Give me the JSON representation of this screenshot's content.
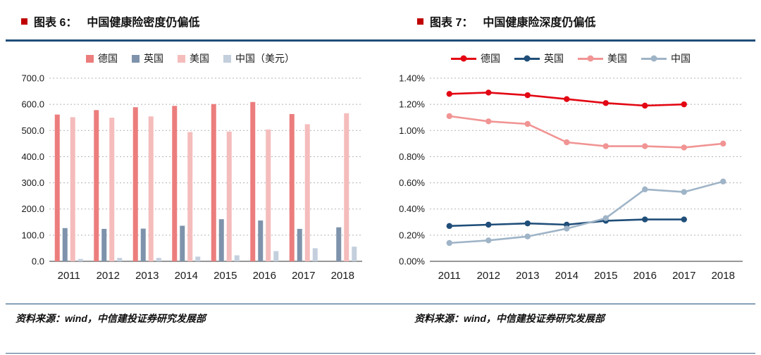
{
  "header": {
    "left_title": {
      "label": "图表 6：",
      "text": "中国健康险密度仍偏低"
    },
    "right_title": {
      "label": "图表 7：",
      "text": "中国健康险深度仍偏低"
    }
  },
  "footer": {
    "left_source": "资料来源：wind，中信建投证券研究发展部",
    "right_source": "资料来源：wind，中信建投证券研究发展部"
  },
  "colors": {
    "title_bullet": "#c00000",
    "divider": "#1f4e79",
    "grid": "#b3b3b3",
    "axis": "#595959"
  },
  "chart_data": [
    {
      "type": "bar",
      "title": "中国健康险密度仍偏低",
      "categories": [
        "2011",
        "2012",
        "2013",
        "2014",
        "2015",
        "2016",
        "2017",
        "2018"
      ],
      "series": [
        {
          "name": "德国",
          "color": "#ec7d7d",
          "values": [
            561,
            578,
            589,
            594,
            601,
            609,
            563,
            null
          ]
        },
        {
          "name": "英国",
          "color": "#7e93ab",
          "values": [
            127,
            124,
            125,
            136,
            161,
            156,
            124,
            130
          ]
        },
        {
          "name": "美国",
          "color": "#f5bcbc",
          "values": [
            551,
            549,
            554,
            494,
            496,
            504,
            524,
            566
          ]
        },
        {
          "name": "中国（美元）",
          "color": "#c3cfdd",
          "values": [
            9,
            13,
            13,
            18,
            23,
            39,
            50,
            56
          ]
        }
      ],
      "ylim": [
        0,
        700
      ],
      "ytick_step": 100,
      "ytick_format": "fixed1",
      "grid": true,
      "legend_position": "top",
      "xlabel": "",
      "ylabel": ""
    },
    {
      "type": "line",
      "title": "中国健康险深度仍偏低",
      "categories": [
        "2011",
        "2012",
        "2013",
        "2014",
        "2015",
        "2016",
        "2017",
        "2018"
      ],
      "series": [
        {
          "name": "德国",
          "color": "#e30613",
          "values": [
            1.28,
            1.29,
            1.27,
            1.24,
            1.21,
            1.19,
            1.2,
            null
          ]
        },
        {
          "name": "英国",
          "color": "#1f4e79",
          "values": [
            0.27,
            0.28,
            0.29,
            0.28,
            0.31,
            0.32,
            0.32,
            null
          ]
        },
        {
          "name": "美国",
          "color": "#f19494",
          "values": [
            1.11,
            1.07,
            1.05,
            0.91,
            0.88,
            0.88,
            0.87,
            0.9
          ]
        },
        {
          "name": "中国",
          "color": "#9fb4c7",
          "values": [
            0.14,
            0.16,
            0.19,
            0.25,
            0.33,
            0.55,
            0.53,
            0.61
          ]
        }
      ],
      "ylim": [
        0,
        1.4
      ],
      "ytick_step": 0.2,
      "ytick_format": "pct2",
      "grid": true,
      "legend_position": "top",
      "xlabel": "",
      "ylabel": ""
    }
  ]
}
